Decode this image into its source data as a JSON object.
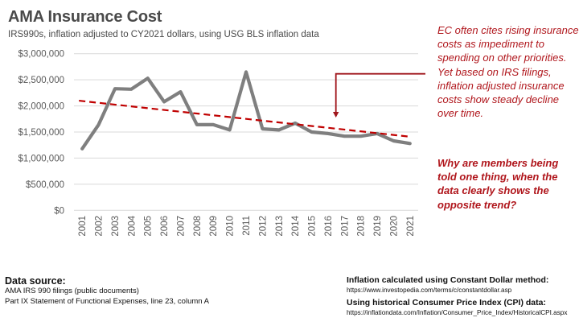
{
  "header": {
    "title": "AMA Insurance Cost",
    "subtitle": "IRS990s, inflation adjusted to CY2021 dollars, using USG BLS inflation data"
  },
  "chart_data": {
    "type": "line",
    "title": "AMA Insurance Cost",
    "subtitle": "IRS990s, inflation adjusted to CY2021 dollars, using USG BLS inflation data",
    "xlabel": "",
    "ylabel": "",
    "categories": [
      "2001",
      "2002",
      "2003",
      "2004",
      "2005",
      "2006",
      "2007",
      "2008",
      "2009",
      "2010",
      "2011",
      "2012",
      "2013",
      "2014",
      "2015",
      "2016",
      "2017",
      "2018",
      "2019",
      "2020",
      "2021"
    ],
    "series": [
      {
        "name": "Insurance cost (2021 dollars)",
        "color": "#7f7f7f",
        "values": [
          1180000,
          1640000,
          2330000,
          2320000,
          2530000,
          2080000,
          2270000,
          1640000,
          1640000,
          1540000,
          2650000,
          1560000,
          1540000,
          1670000,
          1500000,
          1470000,
          1420000,
          1420000,
          1470000,
          1330000,
          1280000
        ]
      },
      {
        "name": "Linear trend",
        "color": "#c00000",
        "style": "dashed",
        "values_endpoints": {
          "2001": 2100000,
          "2021": 1410000
        }
      }
    ],
    "yticks": [
      "$0",
      "$500,000",
      "$1,000,000",
      "$1,500,000",
      "$2,000,000",
      "$2,500,000",
      "$3,000,000"
    ],
    "ytick_values": [
      0,
      500000,
      1000000,
      1500000,
      2000000,
      2500000,
      3000000
    ],
    "ylim": [
      0,
      3000000
    ],
    "grid": true,
    "legend": "none",
    "annotation_arrow_target_year": "2016"
  },
  "annotation": {
    "text": "EC often cites rising insurance costs as impediment to spending on other priorities. Yet based on IRS filings, inflation adjusted insurance costs show steady decline over time.",
    "question": "Why are members being told one thing, when the data clearly shows the opposite trend?",
    "color": "#b0161c"
  },
  "source": {
    "heading": "Data source:",
    "lines": [
      "AMA IRS 990 filings (public documents)",
      "Part IX Statement of Functional Expenses, line 23, column A"
    ]
  },
  "inflation": {
    "heading1": "Inflation calculated using Constant Dollar method:",
    "url1": "https://www.investopedia.com/terms/c/constantdollar.asp",
    "heading2": "Using historical Consumer Price Index (CPI) data:",
    "url2": "https://inflationdata.com/Inflation/Consumer_Price_Index/HistoricalCPI.aspx"
  }
}
